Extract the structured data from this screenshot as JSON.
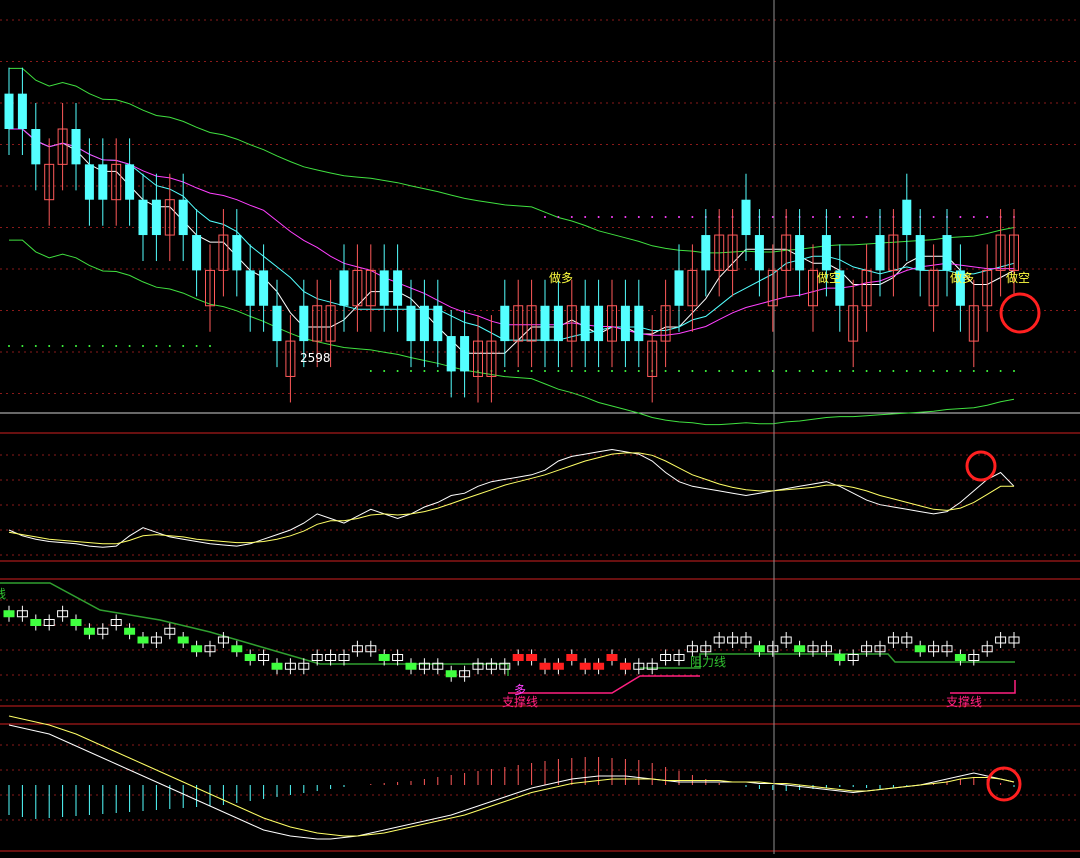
{
  "chart_data": [
    {
      "type": "candlestick",
      "panel": "main",
      "n_bars": 76,
      "up_color": "#ff5a5a",
      "down_color": "#54ffff",
      "closes": [
        2745,
        2745,
        2710,
        2710,
        2745,
        2710,
        2675,
        2675,
        2710,
        2675,
        2640,
        2640,
        2675,
        2640,
        2605,
        2605,
        2640,
        2605,
        2570,
        2570,
        2535,
        2535,
        2535,
        2570,
        2570,
        2570,
        2605,
        2605,
        2570,
        2570,
        2535,
        2535,
        2535,
        2505,
        2505,
        2535,
        2535,
        2535,
        2570,
        2570,
        2535,
        2535,
        2570,
        2535,
        2535,
        2570,
        2535,
        2535,
        2535,
        2570,
        2570,
        2605,
        2605,
        2640,
        2640,
        2640,
        2605,
        2605,
        2640,
        2605,
        2605,
        2605,
        2570,
        2570,
        2605,
        2605,
        2640,
        2640,
        2605,
        2605,
        2605,
        2570,
        2570,
        2605,
        2640,
        2640
      ],
      "annotations": {
        "low_label": "2598",
        "buy_label": "做多",
        "sell_label": "做空"
      },
      "colors": {
        "ma_short": "#ffffff",
        "ma_cyan": "#54ffff",
        "ma_magenta": "#ff40ff",
        "ma_green": "#40e040",
        "ma_red": "#e02020"
      }
    },
    {
      "type": "line",
      "panel": "oscillator",
      "series": [
        {
          "color": "#ffffff",
          "values": [
            20,
            15,
            12,
            10,
            9,
            8,
            6,
            5,
            6,
            15,
            22,
            18,
            14,
            12,
            10,
            8,
            7,
            6,
            8,
            12,
            16,
            20,
            26,
            34,
            30,
            26,
            32,
            38,
            34,
            30,
            34,
            40,
            44,
            50,
            52,
            58,
            62,
            64,
            66,
            68,
            72,
            80,
            84,
            86,
            88,
            90,
            88,
            86,
            80,
            70,
            62,
            58,
            56,
            54,
            52,
            50,
            52,
            54,
            56,
            58,
            60,
            62,
            58,
            52,
            46,
            42,
            40,
            38,
            36,
            34,
            36,
            44,
            54,
            64,
            70,
            58
          ]
        },
        {
          "color": "#ffff66",
          "values": [
            18,
            16,
            14,
            12,
            11,
            10,
            9,
            8,
            8,
            11,
            15,
            16,
            15,
            14,
            12,
            11,
            10,
            9,
            9,
            10,
            12,
            15,
            19,
            25,
            28,
            28,
            30,
            33,
            34,
            33,
            34,
            36,
            39,
            43,
            47,
            51,
            55,
            59,
            62,
            65,
            68,
            72,
            76,
            80,
            83,
            86,
            87,
            87,
            85,
            80,
            74,
            68,
            64,
            60,
            57,
            55,
            54,
            54,
            55,
            56,
            57,
            59,
            59,
            57,
            54,
            50,
            47,
            44,
            41,
            38,
            37,
            39,
            44,
            51,
            58,
            58
          ]
        }
      ]
    },
    {
      "type": "candlestick",
      "panel": "trend",
      "labels": {
        "resistance": "阻力线",
        "support_left": "支撑线",
        "support_right": "支撑线",
        "long": "多",
        "edge": "线"
      },
      "colors": {
        "rising_fill": "#ff2020",
        "falling_fill": "#40ff40",
        "hollow": "#ffffff",
        "resistance_line": "#30a030",
        "support_line": "#ff2080"
      }
    },
    {
      "type": "histogram",
      "panel": "macd",
      "histogram": [
        -30,
        -32,
        -34,
        -33,
        -32,
        -31,
        -30,
        -29,
        -28,
        -27,
        -26,
        -25,
        -24,
        -23,
        -22,
        -21,
        -20,
        -18,
        -16,
        -14,
        -12,
        -10,
        -8,
        -6,
        -4,
        -2,
        0,
        1,
        2,
        3,
        4,
        6,
        8,
        10,
        12,
        14,
        16,
        18,
        20,
        22,
        24,
        26,
        27,
        28,
        28,
        27,
        26,
        25,
        22,
        18,
        14,
        10,
        6,
        2,
        0,
        -2,
        -4,
        -5,
        -6,
        -5,
        -4,
        -3,
        -2,
        -2,
        -3,
        -4,
        -3,
        -2,
        0,
        2,
        4,
        6,
        8,
        6,
        2,
        -2
      ],
      "series": [
        {
          "color": "#ffffff",
          "values": [
            40,
            38,
            36,
            34,
            30,
            26,
            22,
            18,
            14,
            10,
            6,
            2,
            -2,
            -6,
            -10,
            -14,
            -18,
            -22,
            -26,
            -30,
            -32,
            -34,
            -35,
            -36,
            -36,
            -35,
            -34,
            -32,
            -30,
            -28,
            -26,
            -24,
            -22,
            -20,
            -17,
            -14,
            -11,
            -8,
            -5,
            -2,
            0,
            2,
            4,
            5,
            6,
            6,
            6,
            5,
            4,
            3,
            2,
            2,
            2,
            2,
            2,
            2,
            1,
            1,
            0,
            -1,
            -2,
            -3,
            -4,
            -5,
            -4,
            -3,
            -2,
            -1,
            0,
            2,
            4,
            6,
            8,
            6,
            4,
            2
          ]
        },
        {
          "color": "#ffff66",
          "values": [
            46,
            44,
            42,
            40,
            37,
            34,
            30,
            26,
            22,
            18,
            14,
            10,
            6,
            2,
            -2,
            -6,
            -10,
            -14,
            -18,
            -22,
            -25,
            -28,
            -30,
            -32,
            -33,
            -34,
            -34,
            -33,
            -32,
            -30,
            -28,
            -26,
            -24,
            -22,
            -20,
            -17,
            -14,
            -11,
            -8,
            -5,
            -3,
            -1,
            1,
            2,
            3,
            4,
            4,
            4,
            4,
            3,
            3,
            3,
            3,
            3,
            2,
            2,
            2,
            1,
            1,
            0,
            -1,
            -2,
            -3,
            -4,
            -4,
            -3,
            -2,
            -1,
            0,
            1,
            2,
            4,
            5,
            5,
            4,
            2
          ]
        }
      ]
    }
  ]
}
